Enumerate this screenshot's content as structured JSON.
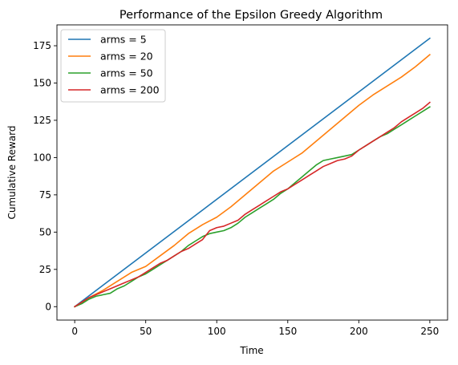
{
  "chart_data": {
    "type": "line",
    "title": "Performance of the Epsilon Greedy Algorithm",
    "xlabel": "Time",
    "ylabel": "Cumulative Reward",
    "xlim": [
      -12.5,
      262.5
    ],
    "ylim": [
      -9,
      189
    ],
    "xticks": [
      0,
      50,
      100,
      150,
      200,
      250
    ],
    "yticks": [
      0,
      25,
      50,
      75,
      100,
      125,
      150,
      175
    ],
    "grid": false,
    "legend_position": "top-left",
    "series": [
      {
        "name": "arms = 5",
        "color": "#1f77b4",
        "points": [
          [
            0,
            0
          ],
          [
            250,
            180
          ]
        ]
      },
      {
        "name": "arms = 20",
        "color": "#ff7f0e",
        "points": [
          [
            0,
            0
          ],
          [
            10,
            6
          ],
          [
            20,
            11
          ],
          [
            30,
            17
          ],
          [
            40,
            23
          ],
          [
            50,
            27
          ],
          [
            60,
            34
          ],
          [
            70,
            41
          ],
          [
            80,
            49
          ],
          [
            90,
            55
          ],
          [
            100,
            60
          ],
          [
            110,
            67
          ],
          [
            120,
            75
          ],
          [
            130,
            83
          ],
          [
            140,
            91
          ],
          [
            150,
            97
          ],
          [
            160,
            103
          ],
          [
            170,
            111
          ],
          [
            180,
            119
          ],
          [
            190,
            127
          ],
          [
            200,
            135
          ],
          [
            210,
            142
          ],
          [
            220,
            148
          ],
          [
            230,
            154
          ],
          [
            240,
            161
          ],
          [
            250,
            169
          ]
        ]
      },
      {
        "name": "arms = 50",
        "color": "#2ca02c",
        "points": [
          [
            0,
            0
          ],
          [
            5,
            2
          ],
          [
            10,
            5
          ],
          [
            15,
            7
          ],
          [
            20,
            8
          ],
          [
            25,
            9
          ],
          [
            30,
            12
          ],
          [
            35,
            14
          ],
          [
            40,
            17
          ],
          [
            45,
            20
          ],
          [
            50,
            22
          ],
          [
            55,
            25
          ],
          [
            60,
            28
          ],
          [
            65,
            31
          ],
          [
            70,
            34
          ],
          [
            75,
            37
          ],
          [
            80,
            41
          ],
          [
            85,
            44
          ],
          [
            90,
            47
          ],
          [
            95,
            49
          ],
          [
            100,
            50
          ],
          [
            105,
            51
          ],
          [
            110,
            53
          ],
          [
            115,
            56
          ],
          [
            120,
            60
          ],
          [
            125,
            63
          ],
          [
            130,
            66
          ],
          [
            135,
            69
          ],
          [
            140,
            72
          ],
          [
            145,
            76
          ],
          [
            150,
            79
          ],
          [
            155,
            83
          ],
          [
            160,
            87
          ],
          [
            165,
            91
          ],
          [
            170,
            95
          ],
          [
            175,
            98
          ],
          [
            180,
            99
          ],
          [
            185,
            100
          ],
          [
            190,
            101
          ],
          [
            195,
            102
          ],
          [
            200,
            105
          ],
          [
            205,
            108
          ],
          [
            210,
            111
          ],
          [
            215,
            114
          ],
          [
            220,
            116
          ],
          [
            225,
            119
          ],
          [
            230,
            122
          ],
          [
            235,
            125
          ],
          [
            240,
            128
          ],
          [
            245,
            131
          ],
          [
            250,
            134
          ]
        ]
      },
      {
        "name": "arms = 200",
        "color": "#d62728",
        "points": [
          [
            0,
            0
          ],
          [
            5,
            3
          ],
          [
            10,
            6
          ],
          [
            15,
            8
          ],
          [
            20,
            10
          ],
          [
            25,
            12
          ],
          [
            30,
            14
          ],
          [
            35,
            16
          ],
          [
            40,
            18
          ],
          [
            45,
            20
          ],
          [
            50,
            23
          ],
          [
            55,
            26
          ],
          [
            60,
            29
          ],
          [
            65,
            31
          ],
          [
            70,
            34
          ],
          [
            75,
            37
          ],
          [
            80,
            39
          ],
          [
            85,
            42
          ],
          [
            90,
            45
          ],
          [
            95,
            51
          ],
          [
            100,
            53
          ],
          [
            105,
            54
          ],
          [
            110,
            56
          ],
          [
            115,
            58
          ],
          [
            120,
            62
          ],
          [
            125,
            65
          ],
          [
            130,
            68
          ],
          [
            135,
            71
          ],
          [
            140,
            74
          ],
          [
            145,
            77
          ],
          [
            150,
            79
          ],
          [
            155,
            82
          ],
          [
            160,
            85
          ],
          [
            165,
            88
          ],
          [
            170,
            91
          ],
          [
            175,
            94
          ],
          [
            180,
            96
          ],
          [
            185,
            98
          ],
          [
            190,
            99
          ],
          [
            195,
            101
          ],
          [
            200,
            105
          ],
          [
            205,
            108
          ],
          [
            210,
            111
          ],
          [
            215,
            114
          ],
          [
            220,
            117
          ],
          [
            225,
            120
          ],
          [
            230,
            124
          ],
          [
            235,
            127
          ],
          [
            240,
            130
          ],
          [
            245,
            133
          ],
          [
            250,
            137
          ]
        ]
      }
    ]
  }
}
